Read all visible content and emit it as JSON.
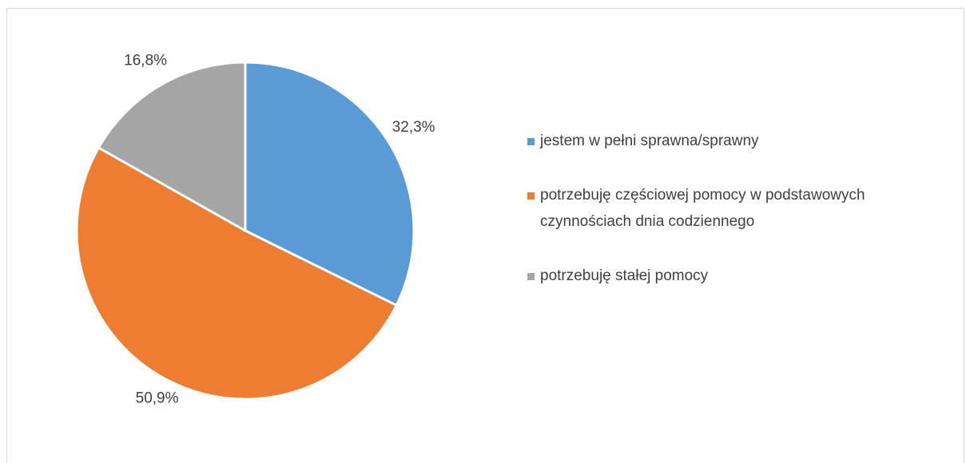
{
  "colors": {
    "blue": "#5b9bd5",
    "orange": "#ed7d31",
    "gray": "#a5a5a5"
  },
  "chart_data": {
    "type": "pie",
    "title": "",
    "categories": [
      "jestem w pełni sprawna/sprawny",
      "potrzebuję częściowej pomocy w podstawowych czynnościach dnia codziennego",
      "potrzebuję stałej pomocy"
    ],
    "values": [
      32.3,
      50.9,
      16.8
    ],
    "data_labels": [
      "32,3%",
      "50,9%",
      "16,8%"
    ],
    "colors": [
      "#5b9bd5",
      "#ed7d31",
      "#a5a5a5"
    ],
    "start_angle_deg": 0,
    "direction": "clockwise",
    "legend_position": "right"
  },
  "legend": {
    "items": [
      {
        "label": "jestem w pełni sprawna/sprawny",
        "color": "#5b9bd5"
      },
      {
        "label": "potrzebuję częściowej pomocy w podstawowych\nczynnościach dnia codziennego",
        "color": "#ed7d31"
      },
      {
        "label": "potrzebuję stałej pomocy",
        "color": "#a5a5a5"
      }
    ]
  }
}
